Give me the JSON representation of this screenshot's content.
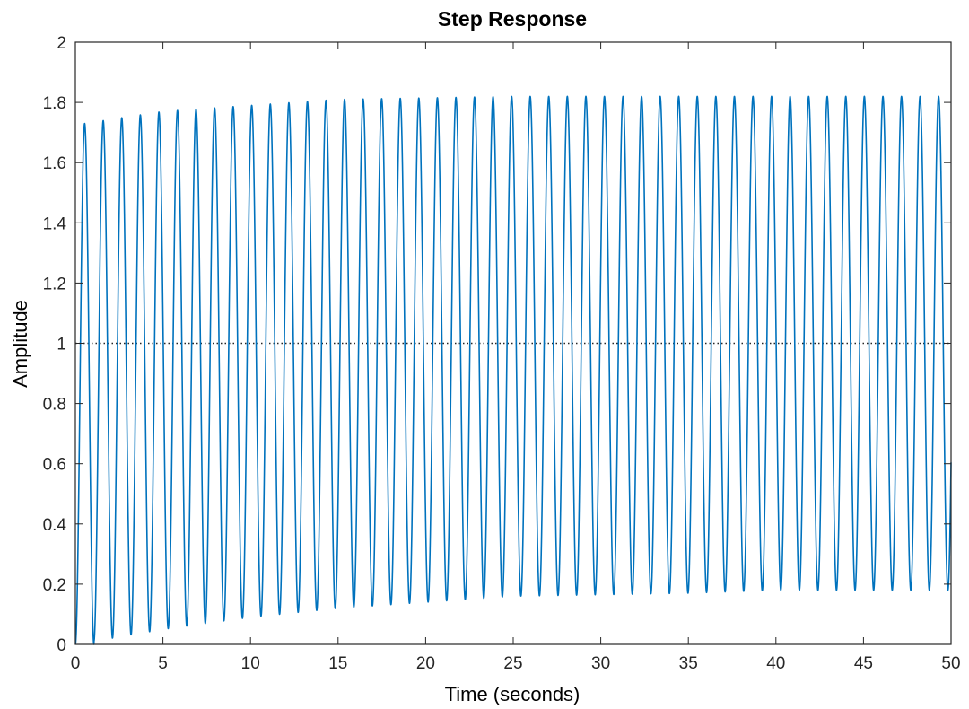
{
  "chart_data": {
    "type": "line",
    "title": "Step Response",
    "xlabel": "Time (seconds)",
    "ylabel": "Amplitude",
    "xlim": [
      0,
      50
    ],
    "ylim": [
      0,
      2
    ],
    "xticks": [
      0,
      5,
      10,
      15,
      20,
      25,
      30,
      35,
      40,
      45,
      50
    ],
    "yticks": [
      0,
      0.2,
      0.4,
      0.6,
      0.8,
      1,
      1.2,
      1.4,
      1.6,
      1.8,
      2
    ],
    "xtick_labels": [
      "0",
      "5",
      "10",
      "15",
      "20",
      "25",
      "30",
      "35",
      "40",
      "45",
      "50"
    ],
    "ytick_labels": [
      "0",
      "0.2",
      "0.4",
      "0.6",
      "0.8",
      "1",
      "1.2",
      "1.4",
      "1.6",
      "1.8",
      "2"
    ],
    "grid": false,
    "reference_line": {
      "y": 1,
      "style": "dotted"
    },
    "series": [
      {
        "color": "#0072bd",
        "final_value": 1,
        "period": 1.06,
        "peaks": [
          {
            "x": 0.53,
            "y": 1.73
          },
          {
            "x": 5,
            "y": 1.77
          },
          {
            "x": 10,
            "y": 1.79
          },
          {
            "x": 15,
            "y": 1.81
          },
          {
            "x": 20,
            "y": 1.815
          },
          {
            "x": 25,
            "y": 1.82
          },
          {
            "x": 30,
            "y": 1.82
          },
          {
            "x": 35,
            "y": 1.82
          },
          {
            "x": 40,
            "y": 1.82
          },
          {
            "x": 45,
            "y": 1.82
          },
          {
            "x": 50,
            "y": 1.82
          }
        ],
        "troughs": [
          {
            "x": 1.06,
            "y": 0.01
          },
          {
            "x": 5,
            "y": 0.05
          },
          {
            "x": 10,
            "y": 0.09
          },
          {
            "x": 15,
            "y": 0.12
          },
          {
            "x": 20,
            "y": 0.14
          },
          {
            "x": 25,
            "y": 0.16
          },
          {
            "x": 30,
            "y": 0.165
          },
          {
            "x": 35,
            "y": 0.17
          },
          {
            "x": 40,
            "y": 0.18
          },
          {
            "x": 45,
            "y": 0.18
          },
          {
            "x": 50,
            "y": 0.18
          }
        ]
      }
    ]
  }
}
